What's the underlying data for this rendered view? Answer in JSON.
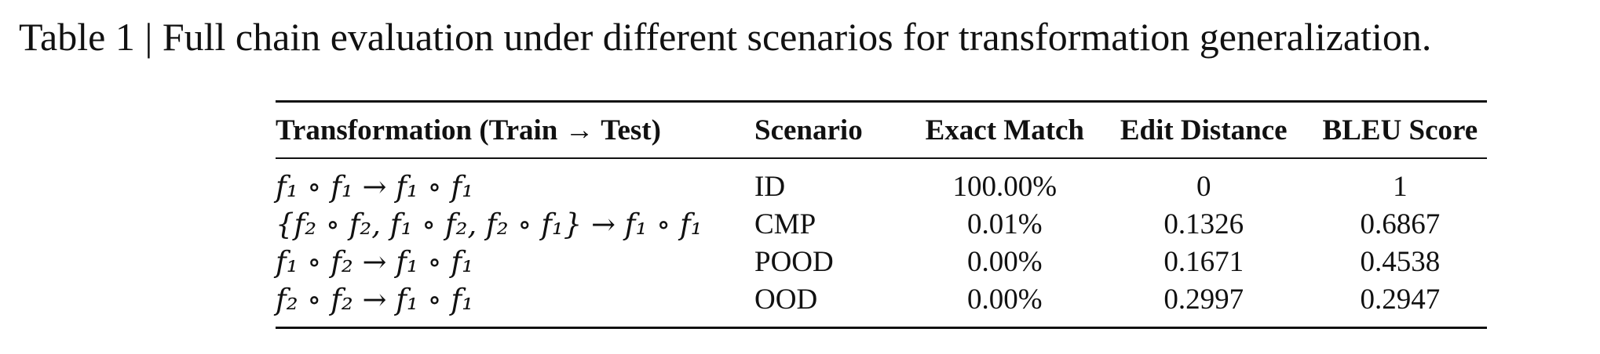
{
  "caption": "Table 1 | Full chain evaluation under different scenarios for transformation generalization.",
  "table": {
    "headers": {
      "transformation": "Transformation (Train → Test)",
      "scenario": "Scenario",
      "exact_match": "Exact Match",
      "edit_distance": "Edit Distance",
      "bleu": "BLEU Score"
    },
    "rows": [
      {
        "transformation": "f₁ ∘ f₁ → f₁ ∘ f₁",
        "scenario": "ID",
        "exact_match": "100.00%",
        "edit_distance": "0",
        "bleu": "1"
      },
      {
        "transformation": "{f₂ ∘ f₂, f₁ ∘ f₂, f₂ ∘ f₁} → f₁ ∘ f₁",
        "scenario": "CMP",
        "exact_match": "0.01%",
        "edit_distance": "0.1326",
        "bleu": "0.6867"
      },
      {
        "transformation": "f₁ ∘ f₂ → f₁ ∘ f₁",
        "scenario": "POOD",
        "exact_match": "0.00%",
        "edit_distance": "0.1671",
        "bleu": "0.4538"
      },
      {
        "transformation": "f₂ ∘ f₂ → f₁ ∘ f₁",
        "scenario": "OOD",
        "exact_match": "0.00%",
        "edit_distance": "0.2997",
        "bleu": "0.2947"
      }
    ]
  }
}
